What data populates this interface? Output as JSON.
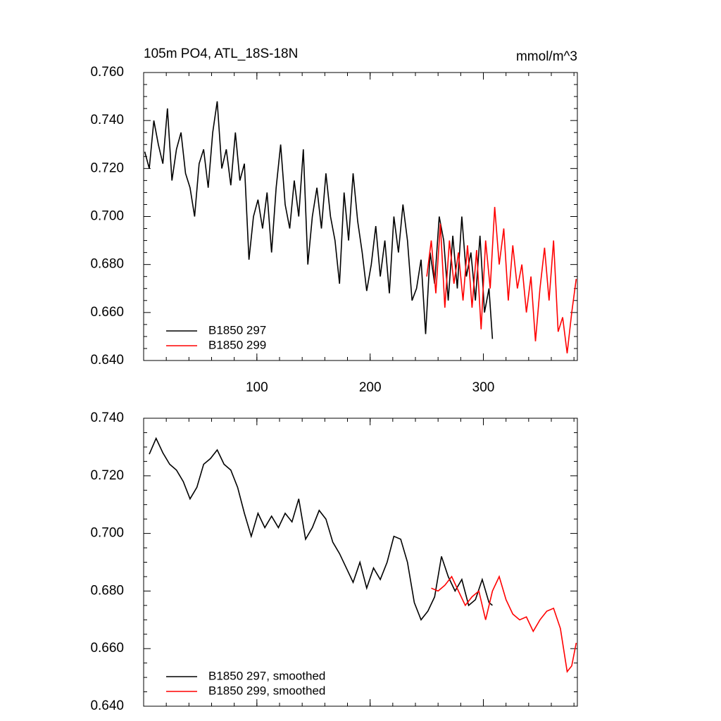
{
  "chart_data": [
    {
      "type": "line",
      "title": "105m PO4, ATL_18S-18N",
      "units": "mmol/m^3",
      "xlim": [
        0,
        383
      ],
      "xticks": [
        100,
        200,
        300
      ],
      "show_xtick_labels": true,
      "ylim": [
        0.64,
        0.76
      ],
      "yticks": [
        {
          "value": 0.64,
          "label": "0.640"
        },
        {
          "value": 0.66,
          "label": "0.660"
        },
        {
          "value": 0.68,
          "label": "0.680"
        },
        {
          "value": 0.7,
          "label": "0.700"
        },
        {
          "value": 0.72,
          "label": "0.720"
        },
        {
          "value": 0.74,
          "label": "0.740"
        },
        {
          "value": 0.76,
          "label": "0.760"
        }
      ],
      "legend": "lower left",
      "series": [
        {
          "name": "B1850 297",
          "color": "#000000",
          "x": [
            1,
            5,
            9,
            13,
            17,
            21,
            25,
            29,
            33,
            37,
            41,
            45,
            49,
            53,
            57,
            61,
            65,
            69,
            73,
            77,
            81,
            85,
            89,
            93,
            97,
            101,
            105,
            109,
            113,
            117,
            121,
            125,
            129,
            133,
            137,
            141,
            145,
            149,
            153,
            157,
            161,
            165,
            169,
            173,
            177,
            181,
            185,
            189,
            193,
            197,
            201,
            205,
            209,
            213,
            217,
            221,
            225,
            229,
            233,
            237,
            241,
            245,
            249,
            253,
            257,
            261,
            265,
            269,
            273,
            277,
            281,
            285,
            289,
            293,
            297,
            301,
            305,
            308
          ],
          "values": [
            0.727,
            0.72,
            0.74,
            0.73,
            0.722,
            0.745,
            0.715,
            0.728,
            0.735,
            0.718,
            0.712,
            0.7,
            0.722,
            0.728,
            0.712,
            0.735,
            0.748,
            0.72,
            0.728,
            0.713,
            0.735,
            0.715,
            0.722,
            0.682,
            0.7,
            0.707,
            0.695,
            0.71,
            0.685,
            0.712,
            0.73,
            0.705,
            0.695,
            0.715,
            0.7,
            0.728,
            0.68,
            0.7,
            0.712,
            0.695,
            0.718,
            0.7,
            0.69,
            0.672,
            0.71,
            0.69,
            0.718,
            0.698,
            0.685,
            0.669,
            0.68,
            0.696,
            0.675,
            0.69,
            0.668,
            0.7,
            0.685,
            0.705,
            0.69,
            0.665,
            0.67,
            0.682,
            0.651,
            0.685,
            0.672,
            0.7,
            0.69,
            0.665,
            0.692,
            0.67,
            0.7,
            0.675,
            0.685,
            0.665,
            0.692,
            0.66,
            0.67,
            0.649
          ]
        },
        {
          "name": "B1850 299",
          "color": "#ff0000",
          "x": [
            250,
            254,
            258,
            262,
            266,
            270,
            274,
            278,
            282,
            286,
            290,
            294,
            298,
            302,
            306,
            310,
            314,
            318,
            322,
            326,
            330,
            334,
            338,
            342,
            346,
            350,
            354,
            358,
            362,
            366,
            370,
            374,
            378,
            382
          ],
          "values": [
            0.675,
            0.69,
            0.668,
            0.697,
            0.662,
            0.69,
            0.672,
            0.685,
            0.665,
            0.688,
            0.662,
            0.686,
            0.653,
            0.69,
            0.67,
            0.704,
            0.68,
            0.695,
            0.665,
            0.688,
            0.67,
            0.68,
            0.66,
            0.675,
            0.648,
            0.67,
            0.687,
            0.665,
            0.69,
            0.652,
            0.658,
            0.643,
            0.66,
            0.674
          ]
        }
      ]
    },
    {
      "type": "line",
      "xlim": [
        0,
        383
      ],
      "xticks": [
        100,
        200,
        300
      ],
      "show_xtick_labels": false,
      "ylim": [
        0.64,
        0.74
      ],
      "yticks": [
        {
          "value": 0.64,
          "label": "0.640"
        },
        {
          "value": 0.66,
          "label": "0.660"
        },
        {
          "value": 0.68,
          "label": "0.680"
        },
        {
          "value": 0.7,
          "label": "0.700"
        },
        {
          "value": 0.72,
          "label": "0.720"
        },
        {
          "value": 0.74,
          "label": "0.740"
        }
      ],
      "legend": "lower left",
      "series": [
        {
          "name": "B1850 297, smoothed",
          "color": "#000000",
          "x": [
            5,
            11,
            17,
            23,
            29,
            35,
            41,
            47,
            53,
            59,
            65,
            71,
            77,
            83,
            89,
            95,
            101,
            107,
            113,
            119,
            125,
            131,
            137,
            143,
            149,
            155,
            161,
            167,
            173,
            179,
            185,
            191,
            197,
            203,
            209,
            215,
            221,
            227,
            233,
            239,
            245,
            251,
            257,
            263,
            269,
            275,
            281,
            287,
            293,
            299,
            305,
            308
          ],
          "values": [
            0.7275,
            0.733,
            0.728,
            0.724,
            0.722,
            0.718,
            0.712,
            0.716,
            0.724,
            0.726,
            0.729,
            0.724,
            0.722,
            0.716,
            0.707,
            0.699,
            0.707,
            0.702,
            0.706,
            0.702,
            0.707,
            0.704,
            0.712,
            0.698,
            0.702,
            0.708,
            0.705,
            0.697,
            0.693,
            0.688,
            0.683,
            0.69,
            0.681,
            0.688,
            0.684,
            0.69,
            0.699,
            0.698,
            0.69,
            0.676,
            0.67,
            0.673,
            0.678,
            0.692,
            0.685,
            0.68,
            0.684,
            0.675,
            0.677,
            0.684,
            0.676,
            0.675
          ]
        },
        {
          "name": "B1850 299, smoothed",
          "color": "#ff0000",
          "x": [
            254,
            260,
            266,
            272,
            278,
            284,
            290,
            296,
            302,
            308,
            314,
            320,
            326,
            332,
            338,
            344,
            350,
            356,
            362,
            368,
            374,
            378,
            382
          ],
          "values": [
            0.681,
            0.68,
            0.682,
            0.685,
            0.68,
            0.675,
            0.678,
            0.68,
            0.67,
            0.68,
            0.685,
            0.677,
            0.672,
            0.67,
            0.671,
            0.666,
            0.67,
            0.673,
            0.674,
            0.667,
            0.652,
            0.654,
            0.662
          ]
        }
      ]
    }
  ]
}
